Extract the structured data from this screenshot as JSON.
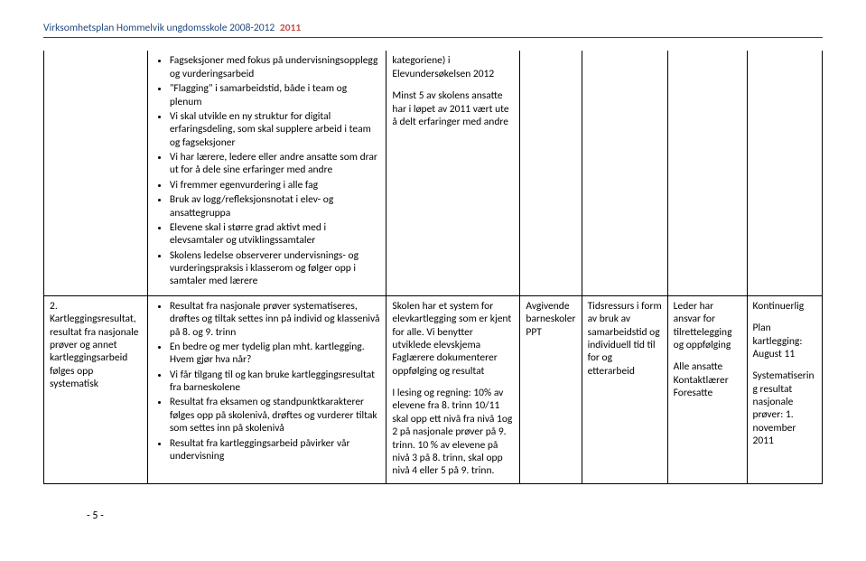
{
  "page": {
    "header_title": "Virksomhetsplan Hommelvik ungdomsskole 2008-2012",
    "header_year": "2011",
    "page_number": "- 5 -"
  },
  "row1": {
    "col2_items": [
      "Fagseksjoner med fokus på undervisningsopplegg og vurderingsarbeid",
      "\"Flagging\" i samarbeidstid, både i team og plenum",
      "Vi skal utvikle en ny struktur for digital erfaringsdeling, som skal supplere arbeid i team og fagseksjoner",
      "Vi har lærere, ledere eller andre ansatte som drar ut for å dele sine erfaringer med andre",
      "Vi fremmer egenvurdering i alle fag",
      "Bruk av logg/refleksjonsnotat i elev- og ansattegruppa",
      "Elevene skal i større grad aktivt med i elevsamtaler og utviklingssamtaler",
      "Skolens ledelse observerer undervisnings- og vurderingspraksis i klasserom og følger opp i samtaler med lærere"
    ],
    "col3_p1": "kategoriene) i Elevundersøkelsen 2012",
    "col3_p2": "Minst 5 av skolens ansatte har i løpet av 2011 vært ute å delt erfaringer med andre"
  },
  "row2": {
    "col1": "2. Kartleggingsresultat, resultat fra nasjonale prøver og annet kartleggingsarbeid følges opp systematisk",
    "col2_items": [
      "Resultat fra nasjonale prøver systematiseres, drøftes og tiltak settes inn på individ og klassenivå på 8. og 9. trinn",
      "En bedre og mer tydelig plan mht. kartlegging. Hvem gjør hva når?",
      "Vi får tilgang til og kan bruke kartleggingsresultat fra barneskolene",
      "Resultat fra eksamen og standpunktkarakterer følges opp på skolenivå, drøftes og vurderer tiltak som settes inn på skolenivå",
      "Resultat fra kartleggingsarbeid påvirker vår undervisning"
    ],
    "col3_p1": "Skolen har et system for elevkartlegging som er kjent for alle. Vi benytter utviklede elevskjema Faglærere dokumenterer oppfølging og resultat",
    "col3_p2": "I lesing og regning: 10% av elevene fra 8. trinn 10/11 skal opp ett nivå fra nivå 1og 2 på nasjonale prøver  på 9. trinn. 10 % av elevene på nivå 3 på 8. trinn, skal opp nivå 4 eller 5 på 9. trinn.",
    "col4_l1": "Avgivende",
    "col4_l2": "barneskoler",
    "col4_l3": "PPT",
    "col5": "Tidsressurs i form av bruk av samarbeidstid og individuell tid til for og etterarbeid",
    "col6_p1": "Leder har ansvar for tilrettelegging og oppfølging",
    "col6_p2": "Alle ansatte",
    "col6_p3": "Kontaktlærer",
    "col6_p4": "Foresatte",
    "col7_p1": "Kontinuerlig",
    "col7_p2": "Plan kartlegging: August 11",
    "col7_p3": "Systematisering resultat nasjonale prøver: 1. november 2011"
  }
}
